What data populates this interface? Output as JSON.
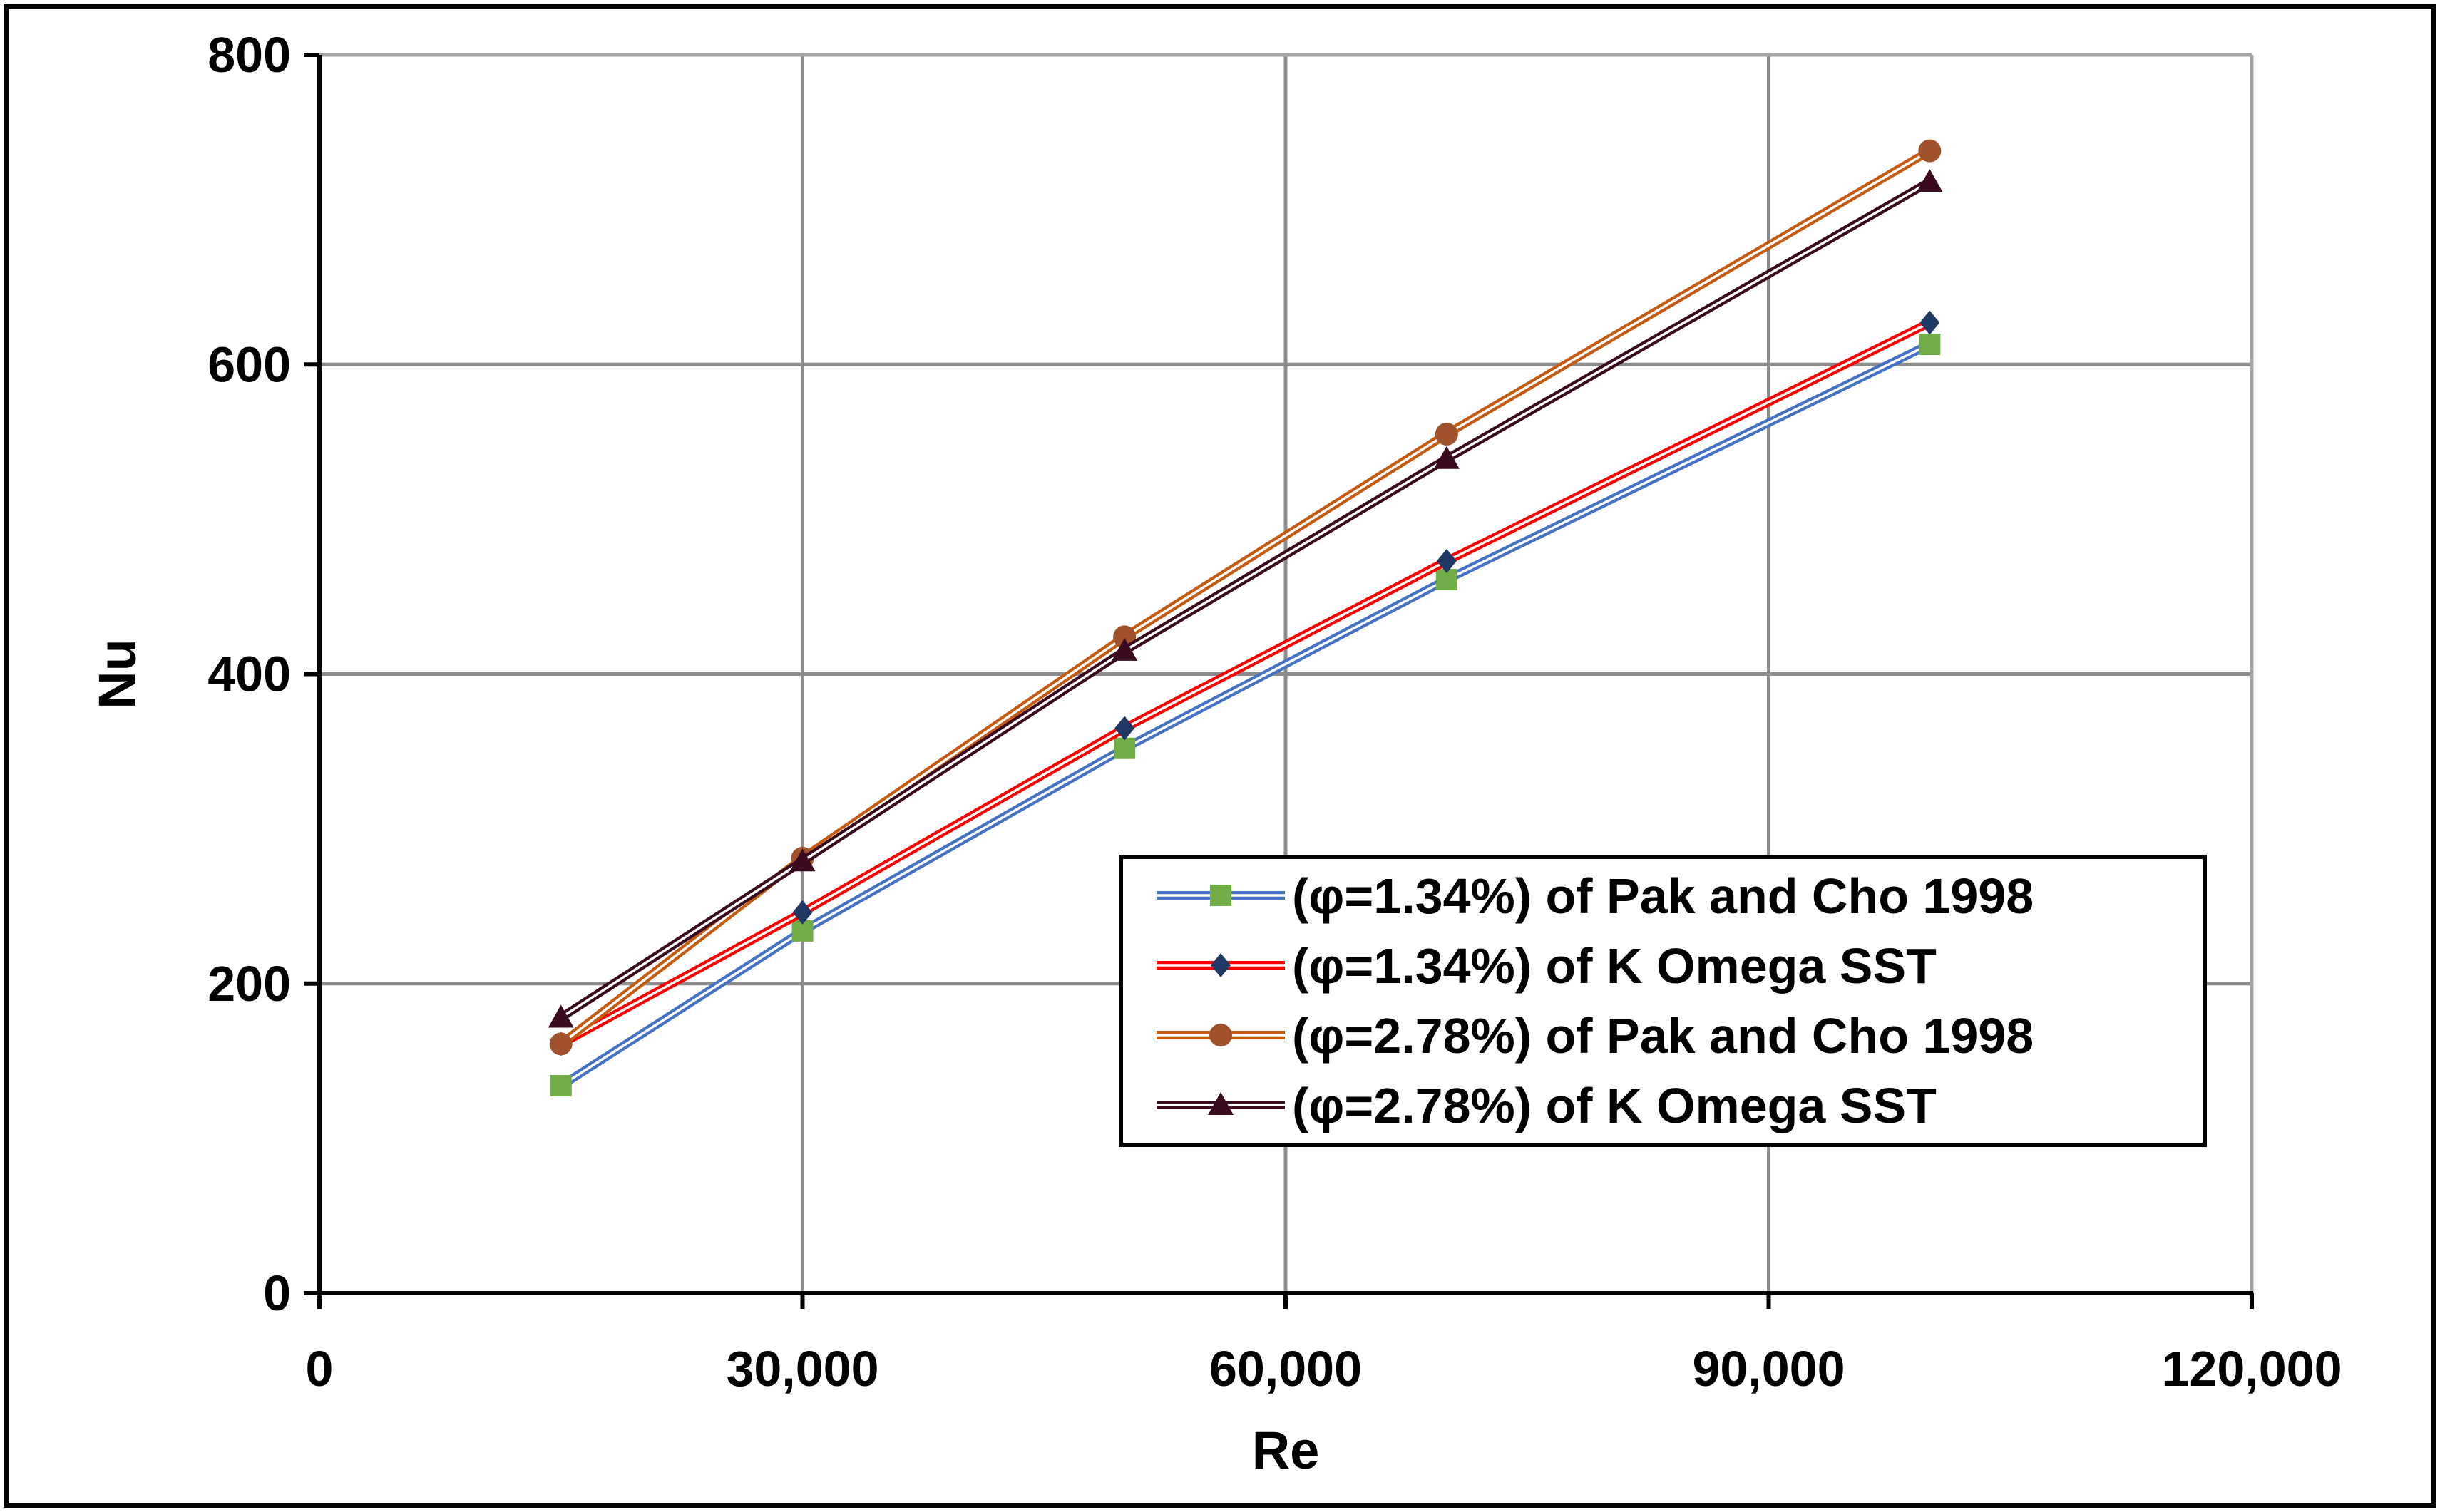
{
  "chart_data": {
    "type": "line",
    "title": "",
    "xlabel": "Re",
    "ylabel": "Nu",
    "xlim": [
      0,
      120000
    ],
    "ylim": [
      0,
      800
    ],
    "xticks": [
      0,
      30000,
      60000,
      90000,
      120000
    ],
    "yticks": [
      0,
      200,
      400,
      600,
      800
    ],
    "xtick_labels": [
      "0",
      "30,000",
      "60,000",
      "90,000",
      "120,000"
    ],
    "ytick_labels": [
      "0",
      "200",
      "400",
      "600",
      "800"
    ],
    "grid": true,
    "legend_position": "lower-right",
    "series": [
      {
        "name": "(φ=1.34%) of Pak and Cho 1998",
        "x": [
          15000,
          30000,
          50000,
          70000,
          100000
        ],
        "y": [
          134,
          234,
          352,
          461,
          613
        ],
        "line_color": "#4472C4",
        "marker": "square",
        "marker_color": "#70AD47"
      },
      {
        "name": "(φ=1.34%) of K Omega SST",
        "x": [
          15000,
          30000,
          50000,
          70000,
          100000
        ],
        "y": [
          161,
          246,
          365,
          473,
          627
        ],
        "line_color": "#FF0000",
        "marker": "diamond",
        "marker_color": "#1F3864"
      },
      {
        "name": "(φ=2.78%) of Pak and Cho 1998",
        "x": [
          15000,
          30000,
          50000,
          70000,
          100000
        ],
        "y": [
          161,
          281,
          424,
          555,
          738
        ],
        "line_color": "#C55A11",
        "marker": "circle",
        "marker_color": "#A0522D"
      },
      {
        "name": "(φ=2.78%) of K Omega SST",
        "x": [
          15000,
          30000,
          50000,
          70000,
          100000
        ],
        "y": [
          178,
          279,
          415,
          539,
          718
        ],
        "line_color": "#3A0A1E",
        "marker": "triangle",
        "marker_color": "#3A0A1E"
      }
    ]
  }
}
